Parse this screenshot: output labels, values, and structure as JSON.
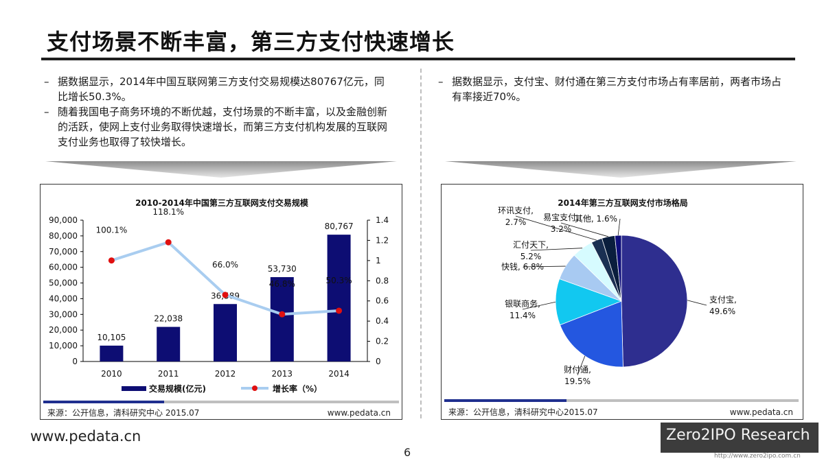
{
  "title": "支付场景不断丰富，第三方支付快速增长",
  "left_bullets": [
    "据数据显示，2014年中国互联网第三方支付交易规模达80767亿元，同比增长50.3%。",
    "随着我国电子商务环境的不断优越，支付场景的不断丰富，以及金融创新的活跃，使网上支付业务取得快速增长，而第三方支付机构发展的互联网支付业务也取得了较快增长。"
  ],
  "right_bullets": [
    "据数据显示，支付宝、财付通在第三方支付市场占有率居前，两者市场占有率接近70%。"
  ],
  "bullet_dash": "–",
  "left_chart": {
    "source": "来源：公开信息，清科研究中心 2015.07",
    "website": "www.pedata.cn"
  },
  "right_chart": {
    "source": "来源：公开信息，清科研究中心2015.07",
    "website": "www.pedata.cn"
  },
  "chart_data": [
    {
      "type": "bar",
      "title": "2010-2014年中国第三方互联网支付交易规模",
      "categories": [
        "2010",
        "2011",
        "2012",
        "2013",
        "2014"
      ],
      "series": [
        {
          "name": "交易规模(亿元)",
          "type": "bar",
          "values": [
            10105,
            22038,
            36589,
            53730,
            80767
          ],
          "labels": [
            "10,105",
            "22,038",
            "36,589",
            "53,730",
            "80,767"
          ],
          "color": "#0d0d73"
        },
        {
          "name": "增长率（%）",
          "type": "line",
          "axis": "right",
          "values": [
            1.001,
            1.181,
            0.66,
            0.468,
            0.503
          ],
          "labels": [
            "100.1%",
            "118.1%",
            "66.0%",
            "46.8%",
            "50.3%"
          ],
          "line_color": "#a9cdf0",
          "marker_color": "#e01010"
        }
      ],
      "y_left": {
        "ylim": [
          0,
          90000
        ],
        "ticks": [
          "0",
          "10,000",
          "20,000",
          "30,000",
          "40,000",
          "50,000",
          "60,000",
          "70,000",
          "80,000",
          "90,000"
        ]
      },
      "y_right": {
        "ylim": [
          0,
          1.4
        ],
        "ticks": [
          "0",
          "0.2",
          "0.4",
          "0.6",
          "0.8",
          "1",
          "1.2",
          "1.4"
        ]
      },
      "legend_placement": "bottom"
    },
    {
      "type": "pie",
      "title": "2014年第三方互联网支付市场格局",
      "slices": [
        {
          "name": "支付宝",
          "value": 49.6,
          "label": "49.6%",
          "color": "#2e2e8f"
        },
        {
          "name": "财付通",
          "value": 19.5,
          "label": "19.5%",
          "color": "#2457e0"
        },
        {
          "name": "银联商务",
          "value": 11.4,
          "label": "11.4%",
          "color": "#12c8f0"
        },
        {
          "name": "快钱",
          "value": 6.8,
          "label": "6.8%",
          "color": "#a8caf2"
        },
        {
          "name": "汇付天下",
          "value": 5.2,
          "label": "5.2%",
          "color": "#d6fbff"
        },
        {
          "name": "环讯支付",
          "value": 2.7,
          "label": "2.7%",
          "color": "#1a2f52"
        },
        {
          "name": "易宝支付",
          "value": 3.2,
          "label": "3.2%",
          "color": "#0a1e3d"
        },
        {
          "name": "其他",
          "value": 1.6,
          "label": "1.6%",
          "color": "#0e0e7a"
        }
      ]
    }
  ],
  "footer": {
    "website": "www.pedata.cn",
    "page": "6",
    "logo": "Zero2IPO Research",
    "logo_url": "http://www.zero2ipo.com.cn"
  },
  "colors": {
    "accent_dark": "#0d0d73",
    "bar_strip": "#1f2f8f",
    "gray_strip": "#bfbfbf"
  }
}
